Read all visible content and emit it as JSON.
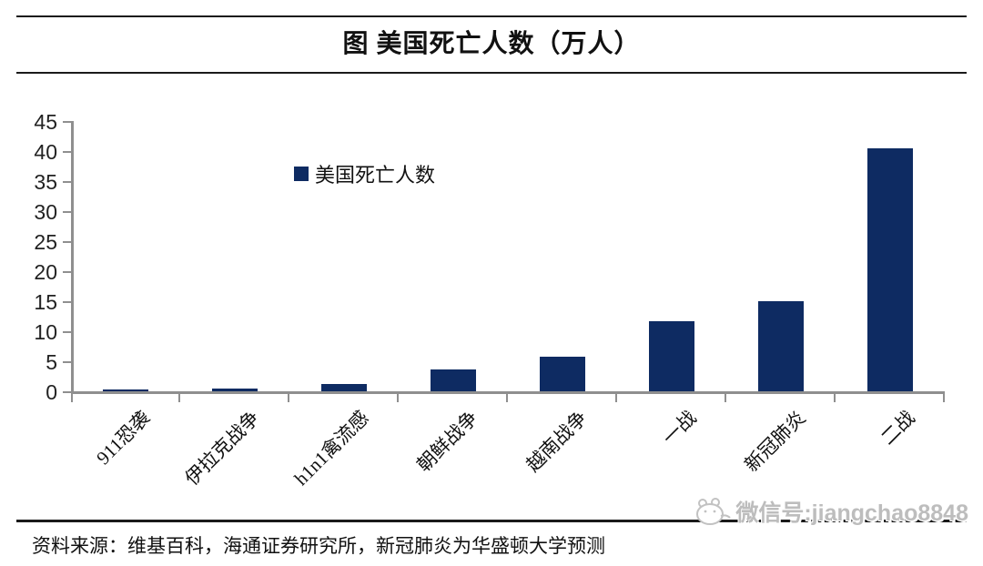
{
  "header": {
    "title": "图  美国死亡人数（万人）"
  },
  "chart_data": {
    "type": "bar",
    "title": "图 美国死亡人数（万人）",
    "legend": "美国死亡人数",
    "categories": [
      "911恐袭",
      "伊拉克战争",
      "h1n1禽流感",
      "朝鲜战争",
      "越南战争",
      "一战",
      "新冠肺炎",
      "二战"
    ],
    "values": [
      0.3,
      0.45,
      1.2,
      3.6,
      5.8,
      11.6,
      15,
      40.5
    ],
    "xlabel": "",
    "ylabel": "",
    "ylim": [
      0,
      45
    ],
    "ytick_step": 5,
    "grid": false,
    "legend_position": "inside-top-left",
    "bar_color": "#0e2b62",
    "axis_color": "#8f8f8f"
  },
  "footer": {
    "source": "资料来源：维基百科，海通证券研究所，新冠肺炎为华盛顿大学预测",
    "watermark": "微信号:jiangchao8848"
  }
}
